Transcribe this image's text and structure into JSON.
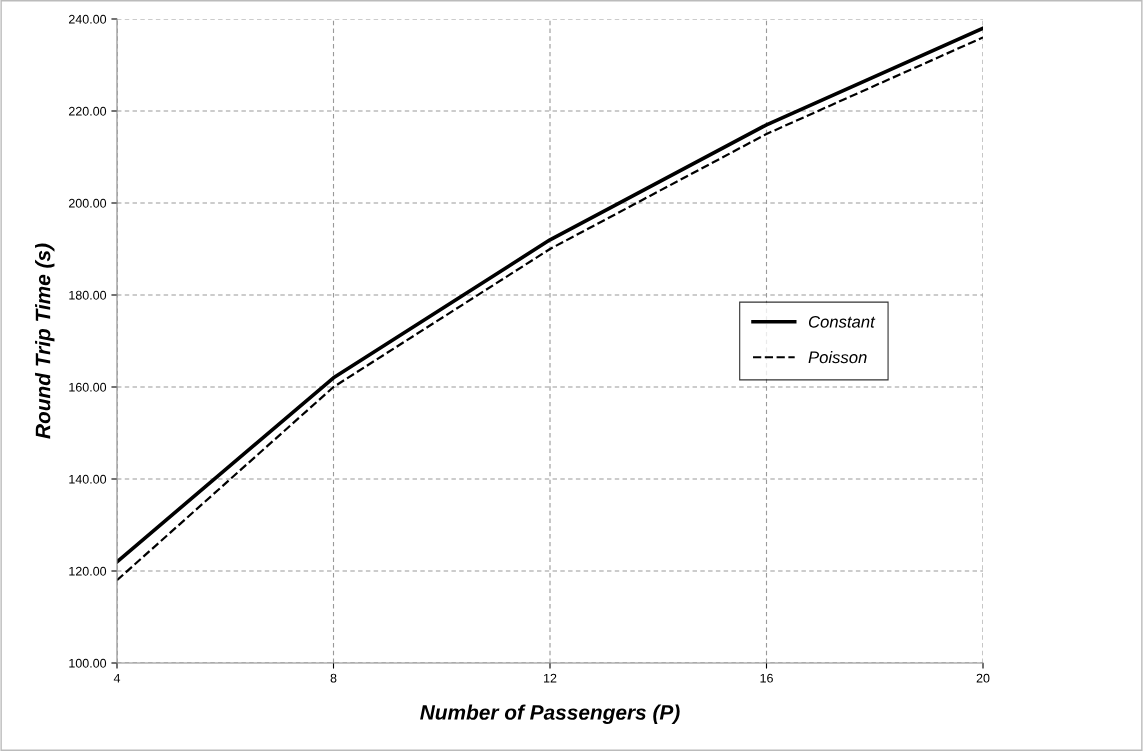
{
  "chart_data": {
    "type": "line",
    "xlabel": "Number of Passengers (P)",
    "ylabel": "Round Trip Time (s)",
    "x": [
      4,
      8,
      12,
      16,
      20
    ],
    "series": [
      {
        "name": "Constant",
        "color": "#000000",
        "line_style": "solid",
        "values": [
          122,
          162,
          192,
          217,
          238
        ]
      },
      {
        "name": "Poisson",
        "color": "#000000",
        "line_style": "dashed",
        "values": [
          118,
          160,
          190,
          215,
          236
        ]
      }
    ],
    "xlim": [
      4,
      20
    ],
    "xticks": [
      4,
      8,
      12,
      16,
      20
    ],
    "ylim": [
      100,
      240
    ],
    "yticks": [
      {
        "value": 100,
        "label": "100.00"
      },
      {
        "value": 120,
        "label": "120.00"
      },
      {
        "value": 140,
        "label": "140.00"
      },
      {
        "value": 160,
        "label": "160.00"
      },
      {
        "value": 180,
        "label": "180.00"
      },
      {
        "value": 200,
        "label": "200.00"
      },
      {
        "value": 220,
        "label": "220.00"
      },
      {
        "value": 240,
        "label": "240.00"
      }
    ],
    "grid": true,
    "legend": "right",
    "marker": "none"
  }
}
